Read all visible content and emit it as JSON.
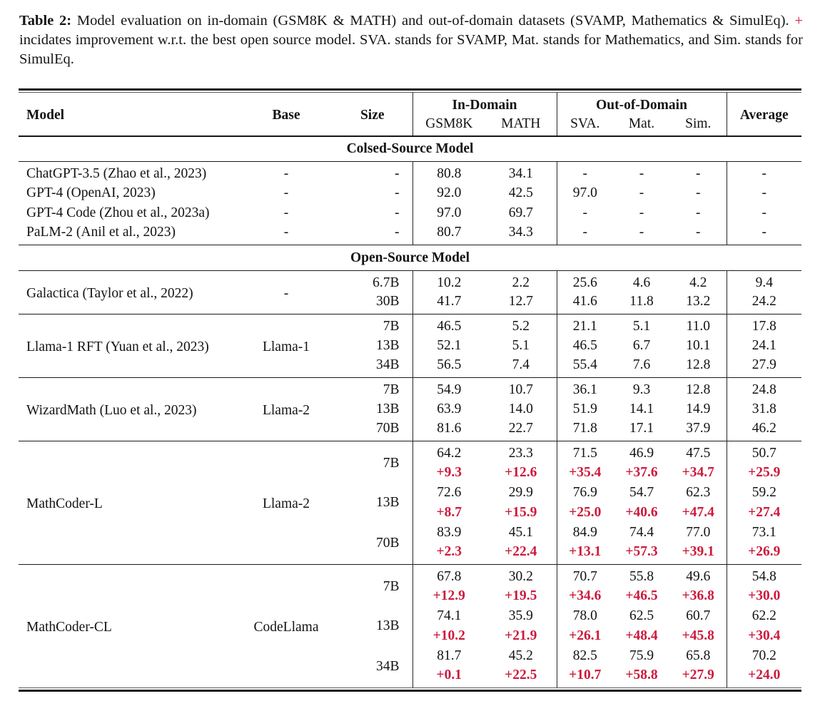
{
  "colors": {
    "delta_red": "#cd1a3c"
  },
  "caption": {
    "label": "Table 2:",
    "part1": "Model evaluation on in-domain (GSM8K & MATH) and out-of-domain datasets (SVAMP, Mathematics & SimulEq).",
    "plus": "+",
    "part2": "incidates improvement w.r.t. the best open source model. SVA. stands for SVAMP, Mat. stands for Mathematics, and Sim. stands for SimulEq."
  },
  "table": {
    "header": {
      "model": "Model",
      "base": "Base",
      "size": "Size",
      "in_domain": "In-Domain",
      "out_of_domain": "Out-of-Domain",
      "average": "Average",
      "sub": [
        "GSM8K",
        "MATH",
        "SVA.",
        "Mat.",
        "Sim."
      ]
    },
    "sections": [
      {
        "kind": "banner",
        "label": "Colsed-Source Model"
      },
      {
        "kind": "rows",
        "rows": [
          {
            "model": "ChatGPT-3.5 (Zhao et al., 2023)",
            "base": "-",
            "size": "-",
            "values": [
              "80.8",
              "34.1",
              "-",
              "-",
              "-",
              "-"
            ]
          },
          {
            "model": "GPT-4 (OpenAI, 2023)",
            "base": "-",
            "size": "-",
            "values": [
              "92.0",
              "42.5",
              "97.0",
              "-",
              "-",
              "-"
            ]
          },
          {
            "model": "GPT-4 Code (Zhou et al., 2023a)",
            "base": "-",
            "size": "-",
            "values": [
              "97.0",
              "69.7",
              "-",
              "-",
              "-",
              "-"
            ]
          },
          {
            "model": "PaLM-2 (Anil et al., 2023)",
            "base": "-",
            "size": "-",
            "values": [
              "80.7",
              "34.3",
              "-",
              "-",
              "-",
              "-"
            ]
          }
        ]
      },
      {
        "kind": "banner",
        "label": "Open-Source Model"
      },
      {
        "kind": "block",
        "model": "Galactica (Taylor et al., 2022)",
        "base": "-",
        "entries": [
          {
            "size": "6.7B",
            "values": [
              "10.2",
              "2.2",
              "25.6",
              "4.6",
              "4.2",
              "9.4"
            ]
          },
          {
            "size": "30B",
            "values": [
              "41.7",
              "12.7",
              "41.6",
              "11.8",
              "13.2",
              "24.2"
            ]
          }
        ]
      },
      {
        "kind": "block",
        "model": "Llama-1 RFT (Yuan et al., 2023)",
        "base": "Llama-1",
        "entries": [
          {
            "size": "7B",
            "values": [
              "46.5",
              "5.2",
              "21.1",
              "5.1",
              "11.0",
              "17.8"
            ]
          },
          {
            "size": "13B",
            "values": [
              "52.1",
              "5.1",
              "46.5",
              "6.7",
              "10.1",
              "24.1"
            ]
          },
          {
            "size": "34B",
            "values": [
              "56.5",
              "7.4",
              "55.4",
              "7.6",
              "12.8",
              "27.9"
            ]
          }
        ]
      },
      {
        "kind": "block",
        "model": "WizardMath (Luo et al., 2023)",
        "base": "Llama-2",
        "entries": [
          {
            "size": "7B",
            "values": [
              "54.9",
              "10.7",
              "36.1",
              "9.3",
              "12.8",
              "24.8"
            ]
          },
          {
            "size": "13B",
            "values": [
              "63.9",
              "14.0",
              "51.9",
              "14.1",
              "14.9",
              "31.8"
            ]
          },
          {
            "size": "70B",
            "values": [
              "81.6",
              "22.7",
              "71.8",
              "17.1",
              "37.9",
              "46.2"
            ]
          }
        ]
      },
      {
        "kind": "block",
        "model": "MathCoder-L",
        "base": "Llama-2",
        "entries": [
          {
            "size": "7B",
            "values": [
              "64.2",
              "23.3",
              "71.5",
              "46.9",
              "47.5",
              "50.7"
            ],
            "delta": [
              "+9.3",
              "+12.6",
              "+35.4",
              "+37.6",
              "+34.7",
              "+25.9"
            ]
          },
          {
            "size": "13B",
            "values": [
              "72.6",
              "29.9",
              "76.9",
              "54.7",
              "62.3",
              "59.2"
            ],
            "delta": [
              "+8.7",
              "+15.9",
              "+25.0",
              "+40.6",
              "+47.4",
              "+27.4"
            ]
          },
          {
            "size": "70B",
            "values": [
              "83.9",
              "45.1",
              "84.9",
              "74.4",
              "77.0",
              "73.1"
            ],
            "delta": [
              "+2.3",
              "+22.4",
              "+13.1",
              "+57.3",
              "+39.1",
              "+26.9"
            ]
          }
        ]
      },
      {
        "kind": "block",
        "model": "MathCoder-CL",
        "base": "CodeLlama",
        "entries": [
          {
            "size": "7B",
            "values": [
              "67.8",
              "30.2",
              "70.7",
              "55.8",
              "49.6",
              "54.8"
            ],
            "delta": [
              "+12.9",
              "+19.5",
              "+34.6",
              "+46.5",
              "+36.8",
              "+30.0"
            ]
          },
          {
            "size": "13B",
            "values": [
              "74.1",
              "35.9",
              "78.0",
              "62.5",
              "60.7",
              "62.2"
            ],
            "delta": [
              "+10.2",
              "+21.9",
              "+26.1",
              "+48.4",
              "+45.8",
              "+30.4"
            ]
          },
          {
            "size": "34B",
            "values": [
              "81.7",
              "45.2",
              "82.5",
              "75.9",
              "65.8",
              "70.2"
            ],
            "delta": [
              "+0.1",
              "+22.5",
              "+10.7",
              "+58.8",
              "+27.9",
              "+24.0"
            ]
          }
        ]
      }
    ]
  }
}
